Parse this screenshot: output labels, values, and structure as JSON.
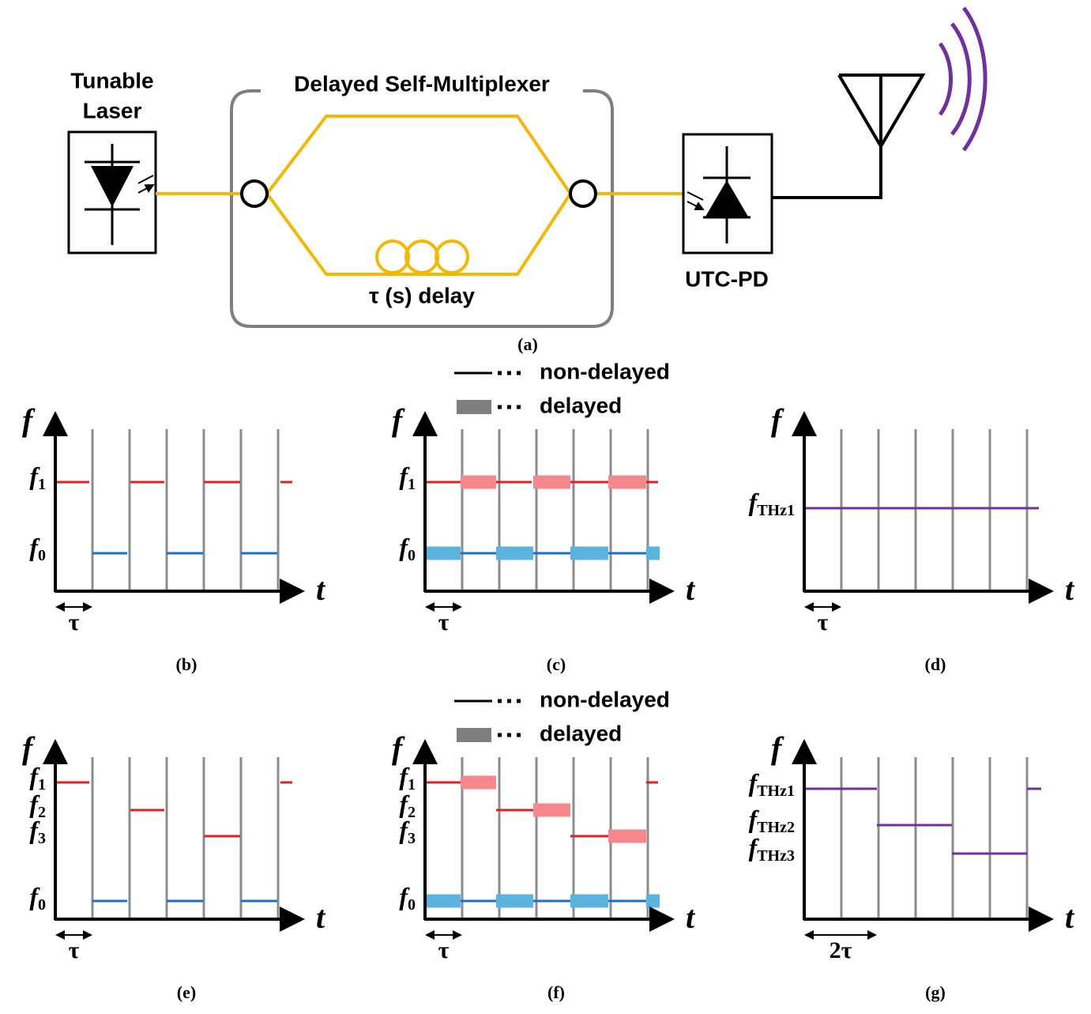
{
  "top": {
    "laser_label": [
      "Tunable",
      "Laser"
    ],
    "multiplexer_label": "Delayed Self-Multiplexer",
    "delay_label": "τ (s) delay",
    "detector_label": "UTC-PD",
    "caption": "(a)"
  },
  "panels": [
    {
      "caption": "(b)",
      "y_axis": "f",
      "x_axis": "t",
      "interval": "τ",
      "levels": [
        {
          "base": "f",
          "sub": "1"
        },
        {
          "base": "f",
          "sub": "0"
        }
      ]
    },
    {
      "caption": "(c)",
      "y_axis": "f",
      "x_axis": "t",
      "interval": "τ",
      "levels": [
        {
          "base": "f",
          "sub": "1"
        },
        {
          "base": "f",
          "sub": "0"
        }
      ],
      "legend": [
        "non-delayed",
        "delayed"
      ]
    },
    {
      "caption": "(d)",
      "y_axis": "f",
      "x_axis": "t",
      "interval": "τ",
      "levels": [
        {
          "base": "f",
          "sub": "THz1"
        }
      ]
    },
    {
      "caption": "(e)",
      "y_axis": "f",
      "x_axis": "t",
      "interval": "τ",
      "levels": [
        {
          "base": "f",
          "sub": "1"
        },
        {
          "base": "f",
          "sub": "2"
        },
        {
          "base": "f",
          "sub": "3"
        },
        {
          "base": "f",
          "sub": "0"
        }
      ]
    },
    {
      "caption": "(f)",
      "y_axis": "f",
      "x_axis": "t",
      "interval": "τ",
      "levels": [
        {
          "base": "f",
          "sub": "1"
        },
        {
          "base": "f",
          "sub": "2"
        },
        {
          "base": "f",
          "sub": "3"
        },
        {
          "base": "f",
          "sub": "0"
        }
      ],
      "legend": [
        "non-delayed",
        "delayed"
      ]
    },
    {
      "caption": "(g)",
      "y_axis": "f",
      "x_axis": "t",
      "interval": "2τ",
      "levels": [
        {
          "base": "f",
          "sub": "THz1"
        },
        {
          "base": "f",
          "sub": "THz2"
        },
        {
          "base": "f",
          "sub": "THz3"
        }
      ]
    }
  ]
}
